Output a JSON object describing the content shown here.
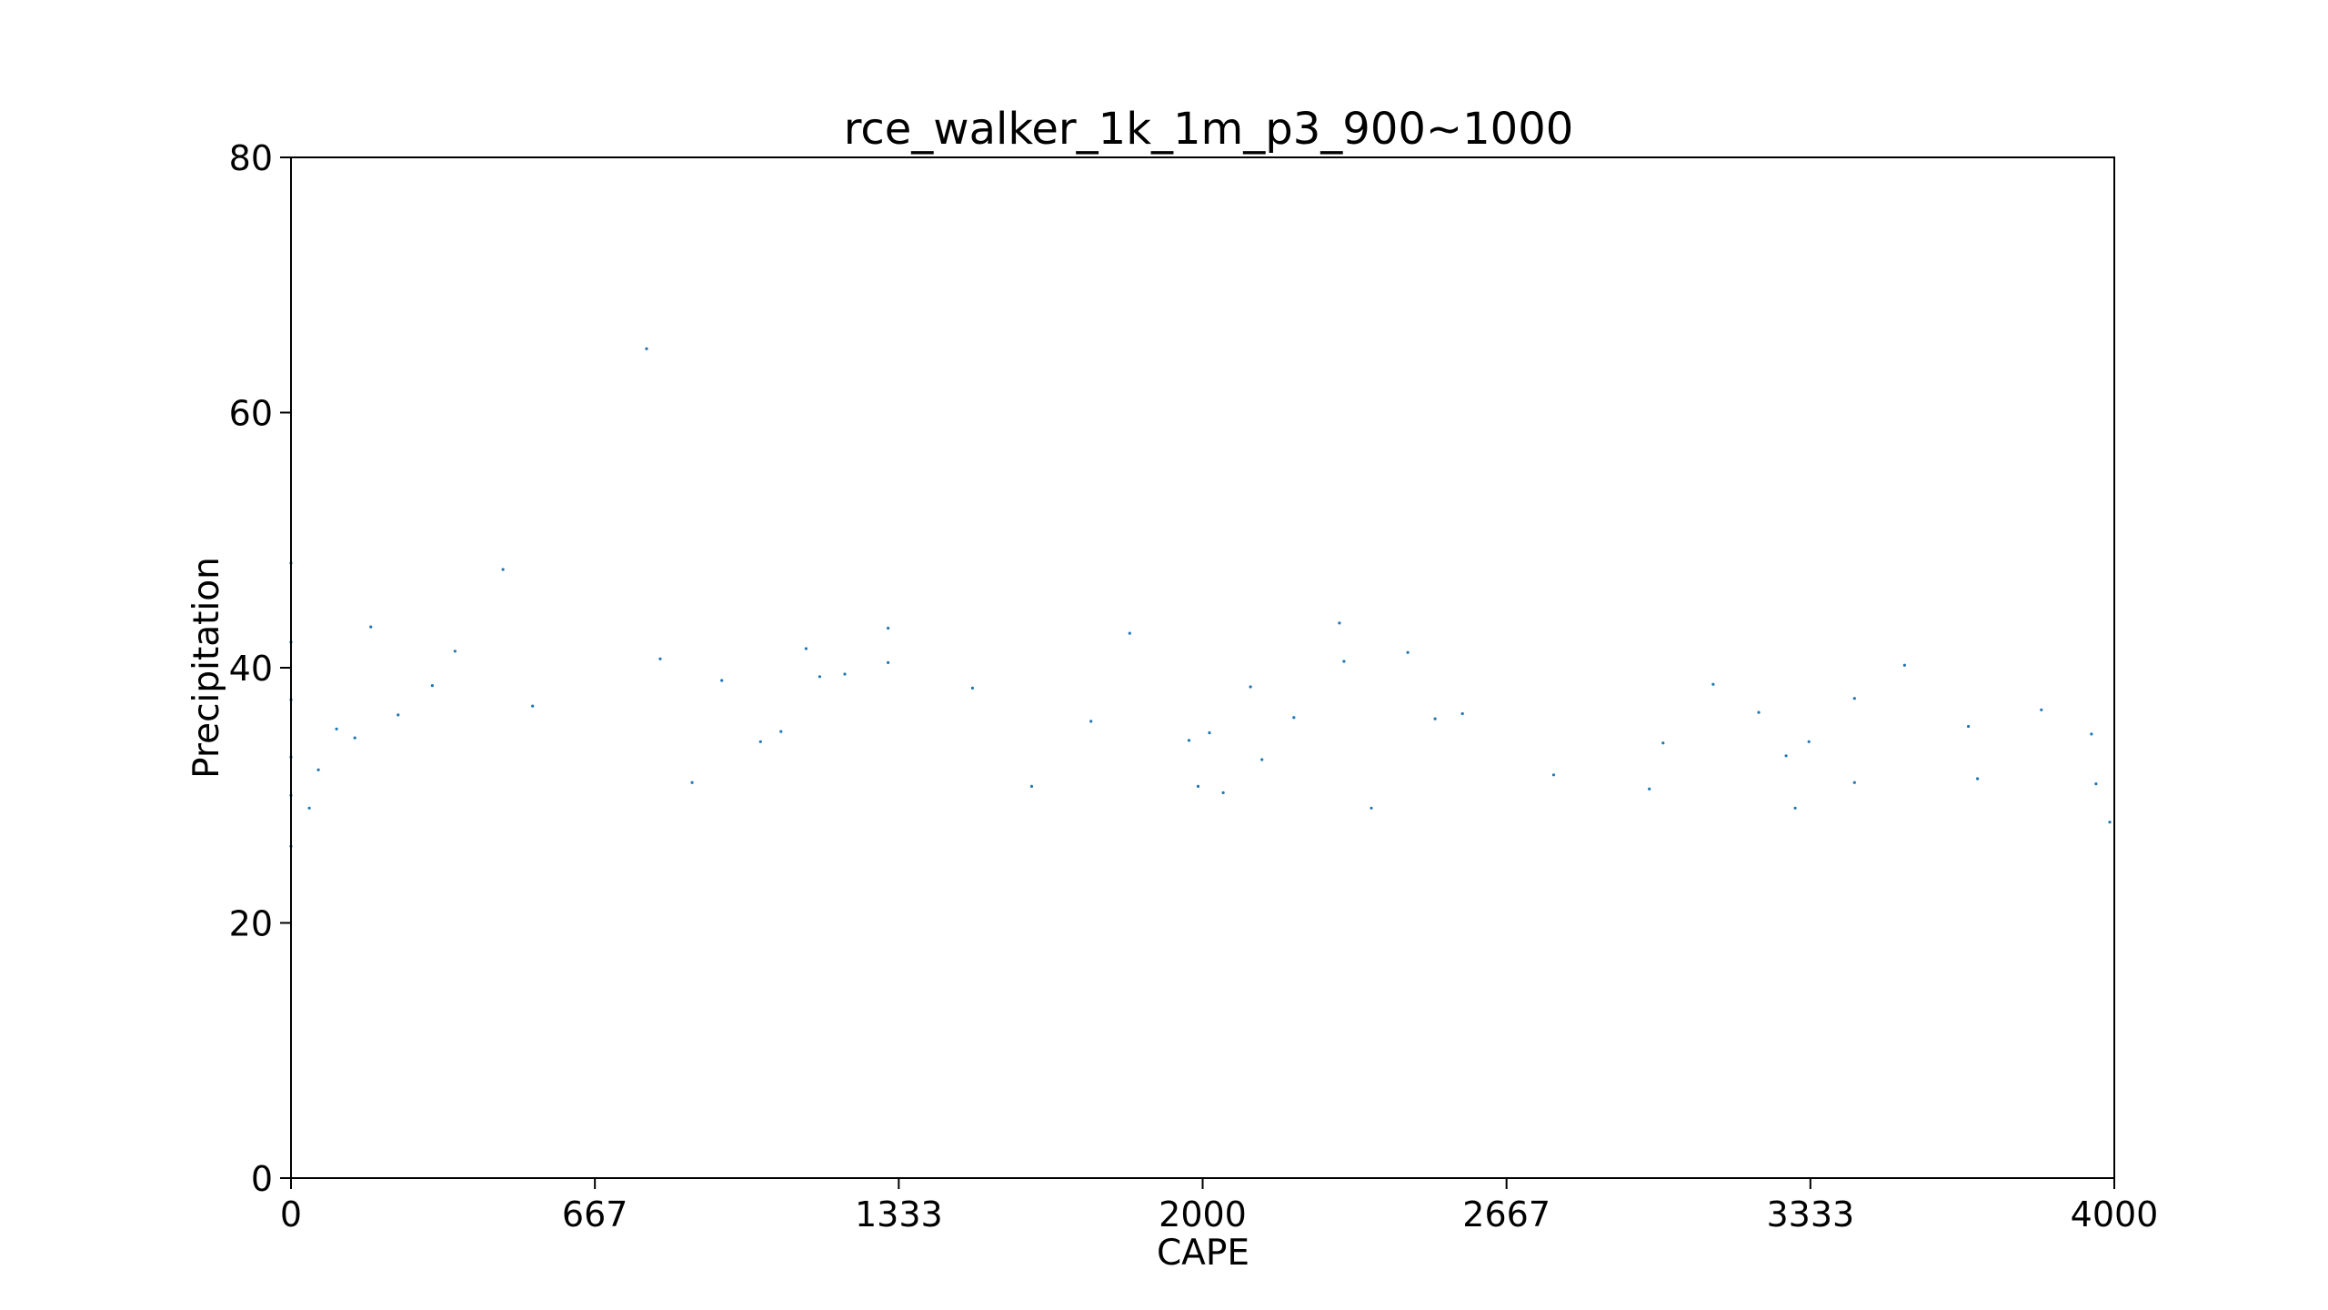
{
  "chart_data": {
    "type": "scatter",
    "title": "rce_walker_1k_1m_p3_900~1000",
    "xlabel": "CAPE",
    "ylabel": "Precipitation",
    "xlim": [
      0,
      4000
    ],
    "ylim": [
      0,
      80
    ],
    "xticks": [
      {
        "value": 0,
        "label": "0"
      },
      {
        "value": 666.67,
        "label": "667"
      },
      {
        "value": 1333.33,
        "label": "1333"
      },
      {
        "value": 2000,
        "label": "2000"
      },
      {
        "value": 2666.67,
        "label": "2667"
      },
      {
        "value": 3333.33,
        "label": "3333"
      },
      {
        "value": 4000,
        "label": "4000"
      }
    ],
    "yticks": [
      {
        "value": 0,
        "label": "0"
      },
      {
        "value": 20,
        "label": "20"
      },
      {
        "value": 40,
        "label": "40"
      },
      {
        "value": 60,
        "label": "60"
      },
      {
        "value": 80,
        "label": "80"
      }
    ],
    "grid": false,
    "legend": "none",
    "marker_color": "#1f77b4",
    "series": [
      {
        "points": [
          [
            0,
            48.2
          ],
          [
            0,
            42.0
          ],
          [
            0,
            37.5
          ],
          [
            0,
            33.0
          ],
          [
            0,
            30.0
          ],
          [
            0,
            26.0
          ],
          [
            780,
            65.0
          ],
          [
            465,
            47.7
          ],
          [
            2300,
            43.5
          ],
          [
            175,
            43.2
          ],
          [
            1310,
            43.1
          ],
          [
            1840,
            42.7
          ],
          [
            360,
            41.3
          ],
          [
            2450,
            41.2
          ],
          [
            1130,
            41.5
          ],
          [
            3540,
            40.2
          ],
          [
            1310,
            40.4
          ],
          [
            2310,
            40.5
          ],
          [
            810,
            40.7
          ],
          [
            1160,
            39.3
          ],
          [
            1215,
            39.5
          ],
          [
            1495,
            38.4
          ],
          [
            945,
            39.0
          ],
          [
            2105,
            38.5
          ],
          [
            3120,
            38.7
          ],
          [
            3430,
            37.6
          ],
          [
            3840,
            36.7
          ],
          [
            3220,
            36.5
          ],
          [
            2570,
            36.4
          ],
          [
            2510,
            36.0
          ],
          [
            235,
            36.3
          ],
          [
            310,
            38.6
          ],
          [
            3950,
            34.8
          ],
          [
            1030,
            34.2
          ],
          [
            1075,
            35.0
          ],
          [
            1755,
            35.8
          ],
          [
            2200,
            36.1
          ],
          [
            2370,
            29.0
          ],
          [
            3680,
            35.4
          ],
          [
            1625,
            30.7
          ],
          [
            530,
            37.0
          ],
          [
            1970,
            34.3
          ],
          [
            2015,
            34.9
          ],
          [
            3330,
            34.2
          ],
          [
            3430,
            31.0
          ],
          [
            3700,
            31.3
          ],
          [
            3960,
            30.9
          ],
          [
            2130,
            32.8
          ],
          [
            880,
            31.0
          ],
          [
            3010,
            34.1
          ],
          [
            3280,
            33.1
          ],
          [
            140,
            34.5
          ],
          [
            100,
            35.2
          ],
          [
            60,
            32.0
          ],
          [
            40,
            29.0
          ],
          [
            3990,
            27.9
          ],
          [
            1990,
            30.7
          ],
          [
            2045,
            30.2
          ],
          [
            2770,
            31.6
          ],
          [
            2980,
            30.5
          ],
          [
            3300,
            29.0
          ]
        ]
      }
    ]
  }
}
